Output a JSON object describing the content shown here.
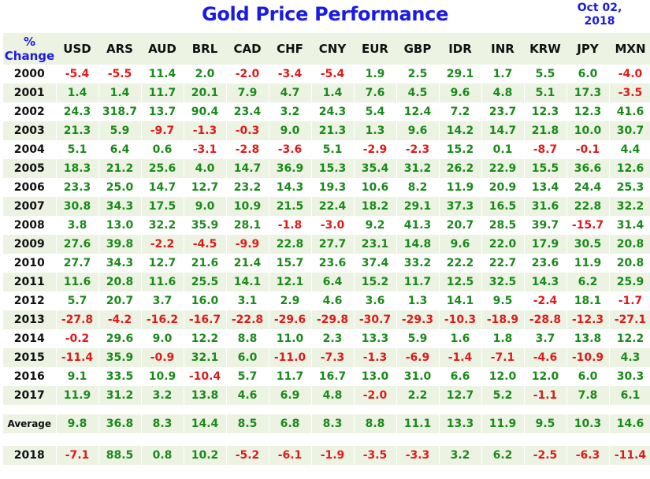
{
  "title": "Gold Price Performance",
  "date": {
    "line1": "Oct 02,",
    "line2": "2018"
  },
  "colors": {
    "title": "#1a1ae6",
    "positive": "#1a8a1a",
    "negative": "#e01a1a",
    "row_shade": "#ecf3e3"
  },
  "chart_data": {
    "type": "table",
    "title": "Gold Price Performance",
    "corner_header": [
      "%",
      "Change"
    ],
    "columns": [
      "USD",
      "ARS",
      "AUD",
      "BRL",
      "CAD",
      "CHF",
      "CNY",
      "EUR",
      "GBP",
      "IDR",
      "INR",
      "KRW",
      "JPY",
      "MXN"
    ],
    "rows": [
      {
        "label": "2000",
        "values": [
          "-5.4",
          "-5.5",
          "11.4",
          "2.0",
          "-2.0",
          "-3.4",
          "-5.4",
          "1.9",
          "2.5",
          "29.1",
          "1.7",
          "5.5",
          "6.0",
          "-4.0"
        ]
      },
      {
        "label": "2001",
        "values": [
          "1.4",
          "1.4",
          "11.7",
          "20.1",
          "7.9",
          "4.7",
          "1.4",
          "7.6",
          "4.5",
          "9.6",
          "4.8",
          "5.1",
          "17.3",
          "-3.5"
        ]
      },
      {
        "label": "2002",
        "values": [
          "24.3",
          "318.7",
          "13.7",
          "90.4",
          "23.4",
          "3.2",
          "24.3",
          "5.4",
          "12.4",
          "7.2",
          "23.7",
          "12.3",
          "12.3",
          "41.6"
        ]
      },
      {
        "label": "2003",
        "values": [
          "21.3",
          "5.9",
          "-9.7",
          "-1.3",
          "-0.3",
          "9.0",
          "21.3",
          "1.3",
          "9.6",
          "14.2",
          "14.7",
          "21.8",
          "10.0",
          "30.7"
        ]
      },
      {
        "label": "2004",
        "values": [
          "5.1",
          "6.4",
          "0.6",
          "-3.1",
          "-2.8",
          "-3.6",
          "5.1",
          "-2.9",
          "-2.3",
          "15.2",
          "0.1",
          "-8.7",
          "-0.1",
          "4.4"
        ]
      },
      {
        "label": "2005",
        "values": [
          "18.3",
          "21.2",
          "25.6",
          "4.0",
          "14.7",
          "36.9",
          "15.3",
          "35.4",
          "31.2",
          "26.2",
          "22.9",
          "15.5",
          "36.6",
          "12.6"
        ]
      },
      {
        "label": "2006",
        "values": [
          "23.3",
          "25.0",
          "14.7",
          "12.7",
          "23.2",
          "14.3",
          "19.3",
          "10.6",
          "8.2",
          "11.9",
          "20.9",
          "13.4",
          "24.4",
          "25.3"
        ]
      },
      {
        "label": "2007",
        "values": [
          "30.8",
          "34.3",
          "17.5",
          "9.0",
          "10.9",
          "21.5",
          "22.4",
          "18.2",
          "29.1",
          "37.3",
          "16.5",
          "31.6",
          "22.8",
          "32.2"
        ]
      },
      {
        "label": "2008",
        "values": [
          "3.8",
          "13.0",
          "32.2",
          "35.9",
          "28.1",
          "-1.8",
          "-3.0",
          "9.2",
          "41.3",
          "20.7",
          "28.5",
          "39.7",
          "-15.7",
          "31.4"
        ]
      },
      {
        "label": "2009",
        "values": [
          "27.6",
          "39.8",
          "-2.2",
          "-4.5",
          "-9.9",
          "22.8",
          "27.7",
          "23.1",
          "14.8",
          "9.6",
          "22.0",
          "17.9",
          "30.5",
          "20.8"
        ]
      },
      {
        "label": "2010",
        "values": [
          "27.7",
          "34.3",
          "12.7",
          "21.6",
          "21.4",
          "15.7",
          "23.6",
          "37.4",
          "33.2",
          "22.2",
          "22.7",
          "23.6",
          "11.9",
          "20.8"
        ]
      },
      {
        "label": "2011",
        "values": [
          "11.6",
          "20.8",
          "11.6",
          "25.5",
          "14.1",
          "12.1",
          "6.4",
          "15.2",
          "11.7",
          "12.5",
          "32.5",
          "14.3",
          "6.2",
          "25.9"
        ]
      },
      {
        "label": "2012",
        "values": [
          "5.7",
          "20.7",
          "3.7",
          "16.0",
          "3.1",
          "2.9",
          "4.6",
          "3.6",
          "1.3",
          "14.1",
          "9.5",
          "-2.4",
          "18.1",
          "-1.7"
        ]
      },
      {
        "label": "2013",
        "values": [
          "-27.8",
          "-4.2",
          "-16.2",
          "-16.7",
          "-22.8",
          "-29.6",
          "-29.8",
          "-30.7",
          "-29.3",
          "-10.3",
          "-18.9",
          "-28.8",
          "-12.3",
          "-27.1"
        ]
      },
      {
        "label": "2014",
        "values": [
          "-0.2",
          "29.6",
          "9.0",
          "12.2",
          "8.8",
          "11.0",
          "2.3",
          "13.3",
          "5.9",
          "1.6",
          "1.8",
          "3.7",
          "13.8",
          "12.2"
        ]
      },
      {
        "label": "2015",
        "values": [
          "-11.4",
          "35.9",
          "-0.9",
          "32.1",
          "6.0",
          "-11.0",
          "-7.3",
          "-1.3",
          "-6.9",
          "-1.4",
          "-7.1",
          "-4.6",
          "-10.9",
          "4.3"
        ]
      },
      {
        "label": "2016",
        "values": [
          "9.1",
          "33.5",
          "10.9",
          "-10.4",
          "5.7",
          "11.7",
          "16.7",
          "13.0",
          "31.0",
          "6.6",
          "12.0",
          "12.0",
          "6.0",
          "30.3"
        ]
      },
      {
        "label": "2017",
        "values": [
          "11.9",
          "31.2",
          "3.2",
          "13.8",
          "4.6",
          "6.9",
          "4.8",
          "-2.0",
          "2.2",
          "12.7",
          "5.2",
          "-1.1",
          "7.8",
          "6.1"
        ]
      }
    ],
    "average": {
      "label": "Average",
      "values": [
        "9.8",
        "36.8",
        "8.3",
        "14.4",
        "8.5",
        "6.8",
        "8.3",
        "8.8",
        "11.1",
        "13.3",
        "11.9",
        "9.5",
        "10.3",
        "14.6"
      ]
    },
    "ytd": {
      "label": "2018",
      "values": [
        "-7.1",
        "88.5",
        "0.8",
        "10.2",
        "-5.2",
        "-6.1",
        "-1.9",
        "-3.5",
        "-3.3",
        "3.2",
        "6.2",
        "-2.5",
        "-6.3",
        "-11.4"
      ]
    }
  }
}
